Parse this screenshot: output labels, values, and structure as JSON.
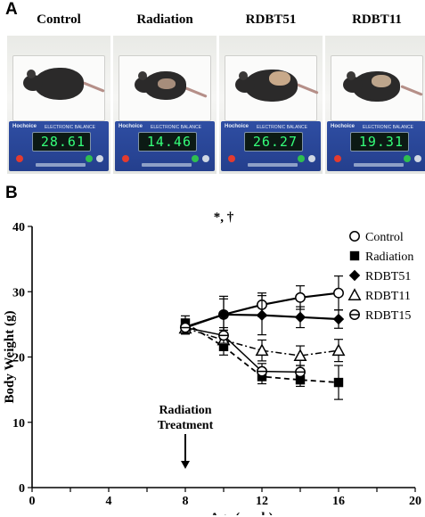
{
  "panel_a": {
    "letter": "A",
    "photos": [
      {
        "label": "Control",
        "reading": "28.61"
      },
      {
        "label": "Radiation",
        "reading": "14.46"
      },
      {
        "label": "RDBT51",
        "reading": "26.27"
      },
      {
        "label": "RDBT11",
        "reading": "19.31"
      }
    ],
    "balance_brand": "Hochoice",
    "balance_title": "ELECTRONIC BALANCE"
  },
  "panel_b": {
    "letter": "B",
    "annotation_treatment": [
      "Radiation",
      "Treatment"
    ]
  },
  "chart_data": {
    "type": "line",
    "title": "",
    "xlabel": "Age (week)",
    "ylabel": "Body Weight (g)",
    "xlim": [
      0,
      20
    ],
    "ylim": [
      0,
      40
    ],
    "xticks": [
      0,
      2,
      4,
      6,
      8,
      10,
      12,
      14,
      16,
      18,
      20
    ],
    "yticks": [
      0,
      10,
      20,
      30,
      40
    ],
    "series": [
      {
        "name": "Control",
        "marker": "open-circle",
        "line": "solid",
        "x": [
          8,
          10,
          12,
          14,
          16
        ],
        "y": [
          24.6,
          26.5,
          28.0,
          29.1,
          29.8
        ],
        "err": [
          0.8,
          2.8,
          1.8,
          1.8,
          2.6
        ]
      },
      {
        "name": "Radiation",
        "marker": "filled-square",
        "line": "dashed",
        "x": [
          8,
          10,
          12,
          14,
          16
        ],
        "y": [
          25.2,
          21.6,
          17.0,
          16.5,
          16.1
        ],
        "err": [
          1.1,
          1.3,
          1.1,
          1.0,
          2.6
        ]
      },
      {
        "name": "RDBT51",
        "marker": "filled-diamond",
        "line": "solid",
        "x": [
          8,
          10,
          12,
          14,
          16
        ],
        "y": [
          24.5,
          26.5,
          26.4,
          26.1,
          25.8
        ],
        "err": [
          0.9,
          2.4,
          3.0,
          1.6,
          1.4
        ]
      },
      {
        "name": "RDBT11",
        "marker": "open-triangle",
        "line": "dashdot",
        "x": [
          8,
          10,
          12,
          14,
          16
        ],
        "y": [
          24.4,
          22.6,
          21.0,
          20.2,
          21.0
        ],
        "err": [
          0.9,
          1.5,
          1.6,
          1.5,
          1.7
        ]
      },
      {
        "name": "RDBT15",
        "marker": "half-circle",
        "line": "solid-thin",
        "x": [
          8,
          10,
          12,
          14,
          16
        ],
        "y": [
          24.5,
          23.3,
          17.8,
          17.7,
          null
        ],
        "err": [
          0.8,
          1.2,
          1.2,
          1.0,
          null
        ]
      }
    ],
    "significance": [
      {
        "x": 10,
        "text": "*, †"
      },
      {
        "x": 12,
        "text": "*, †, #"
      },
      {
        "x": 14,
        "text": "*, †, #"
      },
      {
        "x": 16,
        "text": "*, †"
      }
    ],
    "legend_position": "right",
    "grid": false
  }
}
